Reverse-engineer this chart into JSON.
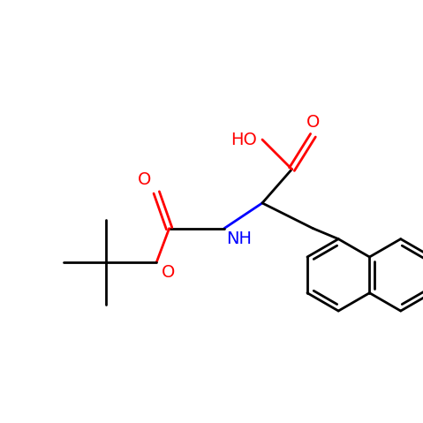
{
  "background_color": "#ffffff",
  "bond_color": "#000000",
  "red_color": "#ff0000",
  "blue_color": "#0000ff",
  "line_width": 2.0,
  "font_size": 13,
  "xlim": [
    -4.5,
    5.5
  ],
  "ylim": [
    -4.0,
    4.0
  ]
}
